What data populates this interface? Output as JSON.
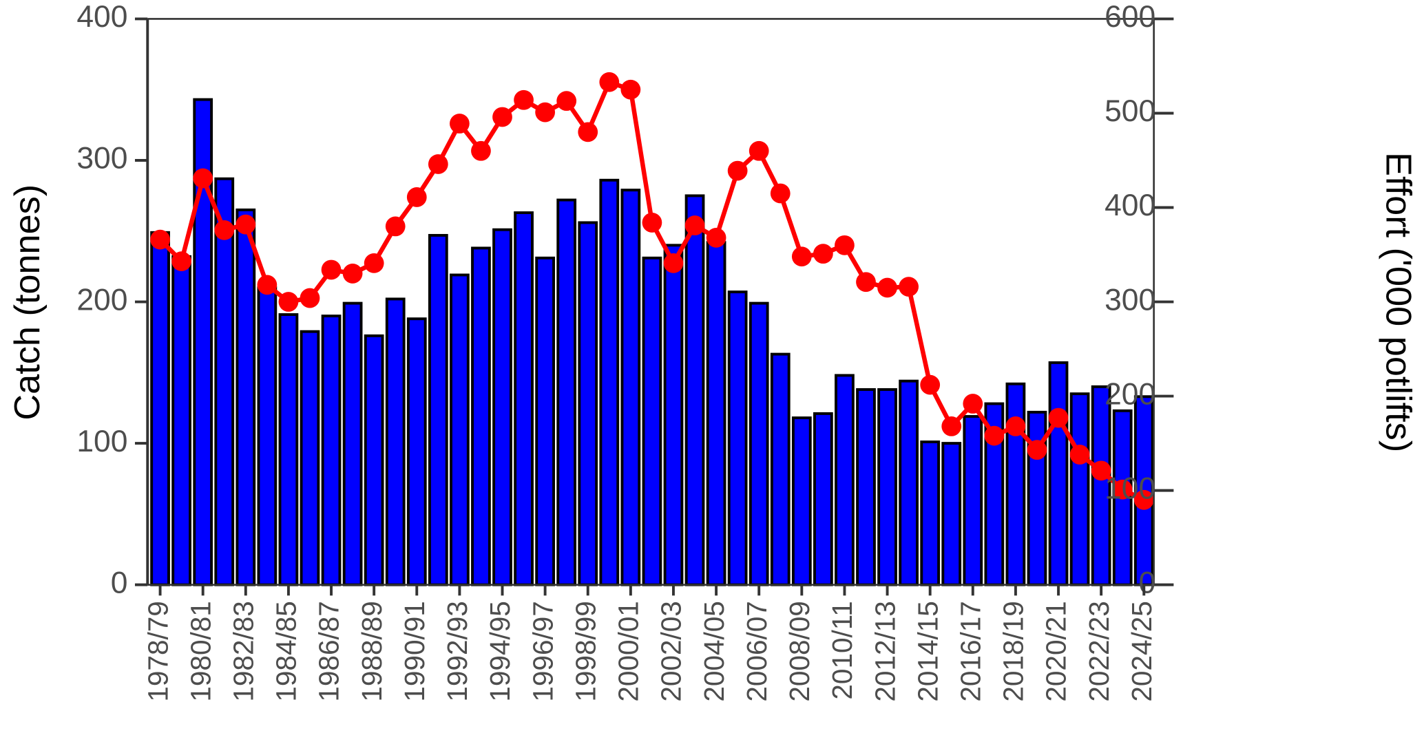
{
  "chart_data": {
    "type": "bar_line",
    "categories": [
      "1978/79",
      null,
      "1980/81",
      null,
      "1982/83",
      null,
      "1984/85",
      null,
      "1986/87",
      null,
      "1988/89",
      null,
      "1990/91",
      null,
      "1992/93",
      null,
      "1994/95",
      null,
      "1996/97",
      null,
      "1998/99",
      null,
      "2000/01",
      null,
      "2002/03",
      null,
      "2004/05",
      null,
      "2006/07",
      null,
      "2008/09",
      null,
      "2010/11",
      null,
      "2012/13",
      null,
      "2014/15",
      null,
      "2016/17",
      null,
      "2018/19",
      null,
      "2020/21",
      null,
      "2022/23",
      null,
      "2024/25"
    ],
    "series": [
      {
        "type": "bar",
        "color": "#0000ff",
        "axis": "y",
        "values": [
          249,
          232,
          343,
          287,
          265,
          210,
          191,
          179,
          190,
          199,
          176,
          202,
          188,
          247,
          219,
          238,
          251,
          263,
          231,
          272,
          256,
          286,
          279,
          231,
          240,
          275,
          242,
          207,
          199,
          163,
          118,
          121,
          148,
          138,
          138,
          144,
          101,
          100,
          119,
          128,
          142,
          122,
          157,
          135,
          140,
          123,
          133
        ]
      },
      {
        "type": "line",
        "color": "#ff0000",
        "axis": "y2",
        "values": [
          366,
          343,
          431,
          376,
          382,
          318,
          300,
          304,
          334,
          330,
          341,
          380,
          411,
          446,
          489,
          460,
          496,
          514,
          501,
          513,
          480,
          533,
          525,
          384,
          341,
          381,
          368,
          439,
          460,
          415,
          348,
          351,
          360,
          321,
          315,
          316,
          212,
          168,
          192,
          158,
          168,
          143,
          177,
          138,
          121,
          101,
          90
        ]
      }
    ],
    "ylabel": "Catch (tonnes)",
    "y2label": "Effort ('000 potlifts)",
    "ylim": [
      0,
      400
    ],
    "yticks": [
      0,
      100,
      200,
      300,
      400
    ],
    "y2lim": [
      0,
      600
    ],
    "y2ticks": [
      0,
      100,
      200,
      300,
      400,
      500,
      600
    ]
  }
}
